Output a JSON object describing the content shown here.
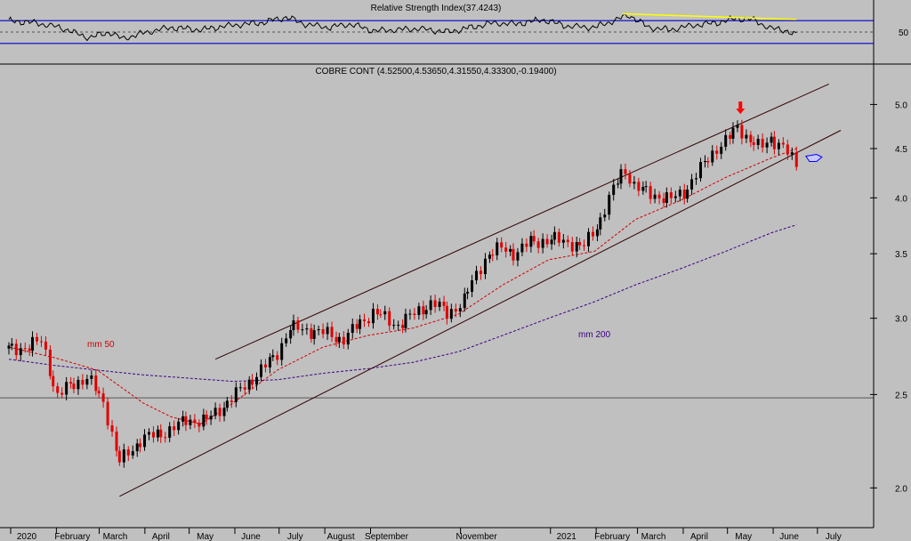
{
  "colors": {
    "background": "#c0c0c0",
    "price_up": "#000000",
    "price_down": "#e00000",
    "rsi_line": "#000000",
    "rsi_band": "#0000cc",
    "rsi_trend": "#ffff00",
    "ma50": "#d00000",
    "ma200": "#3a0080",
    "channel": "#300000",
    "signal_arrow": "#ff0000",
    "hand_icon": "#0000ff"
  },
  "chart_data": [
    {
      "type": "line",
      "panel": "rsi",
      "title": "Relative Strength Index(37.4243)",
      "y_tick_labels": [
        "50"
      ],
      "ylim": [
        0,
        100
      ],
      "bands": [
        70,
        50,
        30
      ],
      "series": [
        {
          "name": "",
          "x": [
            "2020-01-01",
            "2020-01-20",
            "2020-02-05",
            "2020-02-25",
            "2020-03-10",
            "2020-03-18",
            "2020-04-01",
            "2020-04-20",
            "2020-05-10",
            "2020-06-01",
            "2020-06-20",
            "2020-07-08",
            "2020-07-20",
            "2020-08-05",
            "2020-08-20",
            "2020-09-05",
            "2020-09-20",
            "2020-10-05",
            "2020-10-25",
            "2020-11-10",
            "2020-11-25",
            "2020-12-10",
            "2020-12-28",
            "2021-01-15",
            "2021-02-01",
            "2021-02-15",
            "2021-02-25",
            "2021-03-10",
            "2021-03-25",
            "2021-04-10",
            "2021-04-25",
            "2021-05-08",
            "2021-05-20",
            "2021-06-01",
            "2021-06-10",
            "2021-06-18"
          ],
          "values": [
            70,
            66,
            58,
            40,
            50,
            38,
            48,
            58,
            54,
            62,
            66,
            76,
            64,
            58,
            64,
            52,
            54,
            56,
            50,
            58,
            66,
            64,
            72,
            60,
            58,
            70,
            80,
            58,
            54,
            62,
            66,
            74,
            72,
            56,
            54,
            44
          ]
        }
      ],
      "annotations": [
        {
          "type": "trendline",
          "color": "yellow",
          "x": [
            "2021-02-20",
            "2021-06-18"
          ],
          "y": [
            82,
            72
          ]
        }
      ]
    },
    {
      "type": "candlestick",
      "panel": "price",
      "title": "COBRE CONT (4.52500,4.53650,4.31550,4.33300,-0.19400)",
      "x_tick_labels": [
        "2020",
        "February",
        "March",
        "April",
        "May",
        "June",
        "July",
        "August",
        "September",
        "November",
        "2021",
        "February",
        "March",
        "April",
        "May",
        "June",
        "July"
      ],
      "y_tick_labels": [
        "2.0",
        "2.5",
        "3.0",
        "3.5",
        "4.0",
        "4.5",
        "5.0"
      ],
      "y_scale": "log",
      "ylim": [
        1.85,
        5.3
      ],
      "xlim": [
        "2020-01-01",
        "2021-07-18"
      ],
      "series": [
        {
          "name": "",
          "x": [
            "2020-01-01",
            "2020-01-15",
            "2020-01-24",
            "2020-02-03",
            "2020-02-12",
            "2020-02-24",
            "2020-03-06",
            "2020-03-16",
            "2020-03-23",
            "2020-04-01",
            "2020-04-15",
            "2020-05-01",
            "2020-05-15",
            "2020-06-01",
            "2020-06-15",
            "2020-07-01",
            "2020-07-10",
            "2020-07-20",
            "2020-08-01",
            "2020-08-15",
            "2020-08-25",
            "2020-09-05",
            "2020-09-20",
            "2020-10-01",
            "2020-10-15",
            "2020-10-25",
            "2020-11-05",
            "2020-11-20",
            "2020-12-01",
            "2020-12-10",
            "2020-12-20",
            "2021-01-05",
            "2021-01-15",
            "2021-01-25",
            "2021-02-05",
            "2021-02-15",
            "2021-02-22",
            "2021-03-01",
            "2021-03-10",
            "2021-03-25",
            "2021-04-05",
            "2021-04-15",
            "2021-04-25",
            "2021-05-03",
            "2021-05-10",
            "2021-05-17",
            "2021-05-25",
            "2021-06-01",
            "2021-06-10",
            "2021-06-18"
          ],
          "values": [
            2.79,
            2.8,
            2.85,
            2.48,
            2.56,
            2.6,
            2.45,
            2.12,
            2.18,
            2.25,
            2.28,
            2.35,
            2.35,
            2.48,
            2.6,
            2.75,
            2.93,
            2.92,
            2.9,
            2.85,
            2.95,
            3.05,
            2.95,
            3.02,
            3.12,
            3.03,
            3.13,
            3.48,
            3.55,
            3.5,
            3.6,
            3.62,
            3.6,
            3.55,
            3.78,
            4.1,
            4.3,
            4.1,
            4.05,
            3.98,
            4.08,
            4.3,
            4.5,
            4.6,
            4.75,
            4.6,
            4.5,
            4.62,
            4.5,
            4.33
          ]
        }
      ],
      "overlays": [
        {
          "name": "mm 50",
          "color": "red",
          "style": "dashed",
          "x": [
            "2020-01-01",
            "2020-02-01",
            "2020-03-01",
            "2020-04-01",
            "2020-04-20",
            "2020-05-10",
            "2020-06-01",
            "2020-07-01",
            "2020-08-01",
            "2020-09-01",
            "2020-10-01",
            "2020-11-01",
            "2020-12-01",
            "2021-01-01",
            "2021-02-01",
            "2021-03-01",
            "2021-04-01",
            "2021-05-01",
            "2021-06-01",
            "2021-06-18"
          ],
          "values": [
            2.8,
            2.73,
            2.65,
            2.45,
            2.37,
            2.33,
            2.45,
            2.65,
            2.8,
            2.88,
            2.93,
            3.03,
            3.25,
            3.45,
            3.52,
            3.8,
            3.98,
            4.2,
            4.4,
            4.5
          ]
        },
        {
          "name": "mm 200",
          "color": "purple",
          "style": "dashed",
          "x": [
            "2020-01-01",
            "2020-02-01",
            "2020-03-01",
            "2020-04-01",
            "2020-05-01",
            "2020-06-01",
            "2020-07-01",
            "2020-08-01",
            "2020-09-01",
            "2020-10-01",
            "2020-11-01",
            "2020-12-01",
            "2021-01-01",
            "2021-02-01",
            "2021-03-01",
            "2021-04-01",
            "2021-05-01",
            "2021-06-01",
            "2021-06-18"
          ],
          "values": [
            2.72,
            2.68,
            2.65,
            2.62,
            2.6,
            2.58,
            2.59,
            2.63,
            2.66,
            2.7,
            2.77,
            2.88,
            3.0,
            3.12,
            3.25,
            3.38,
            3.52,
            3.68,
            3.75
          ]
        }
      ],
      "annotations": [
        {
          "type": "channel_upper",
          "x": [
            "2020-05-20",
            "2021-07-10"
          ],
          "y": [
            2.72,
            5.25
          ]
        },
        {
          "type": "channel_lower",
          "x": [
            "2020-03-16",
            "2021-07-18"
          ],
          "y": [
            1.96,
            4.7
          ]
        },
        {
          "type": "horizontal_line",
          "y": 2.48
        },
        {
          "type": "arrow_down",
          "x": "2021-05-11",
          "y": 4.95
        },
        {
          "type": "hand_icon",
          "x": "2021-06-28",
          "y": 4.4
        }
      ]
    }
  ]
}
